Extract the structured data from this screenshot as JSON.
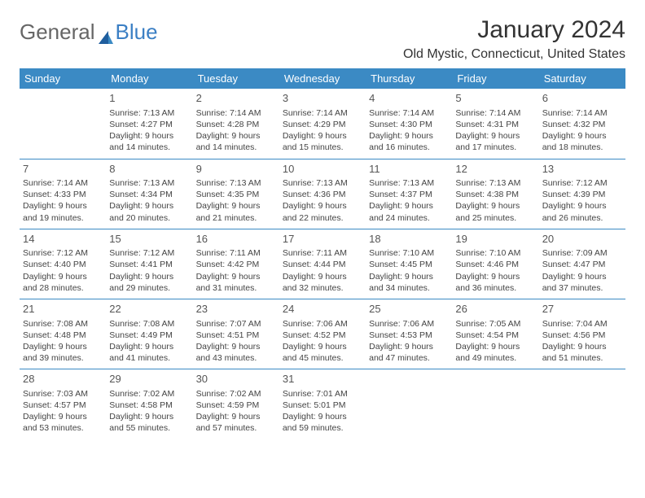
{
  "brand": {
    "part1": "General",
    "part2": "Blue"
  },
  "title": "January 2024",
  "location": "Old Mystic, Connecticut, United States",
  "colors": {
    "header_bg": "#3b8ac4",
    "header_text": "#ffffff",
    "rule": "#3b8ac4",
    "page_bg": "#ffffff",
    "body_text": "#444444",
    "logo_blue": "#3b7fc4",
    "logo_gray": "#666666"
  },
  "weekdays": [
    "Sunday",
    "Monday",
    "Tuesday",
    "Wednesday",
    "Thursday",
    "Friday",
    "Saturday"
  ],
  "weeks": [
    [
      null,
      {
        "n": "1",
        "sr": "Sunrise: 7:13 AM",
        "ss": "Sunset: 4:27 PM",
        "d1": "Daylight: 9 hours",
        "d2": "and 14 minutes."
      },
      {
        "n": "2",
        "sr": "Sunrise: 7:14 AM",
        "ss": "Sunset: 4:28 PM",
        "d1": "Daylight: 9 hours",
        "d2": "and 14 minutes."
      },
      {
        "n": "3",
        "sr": "Sunrise: 7:14 AM",
        "ss": "Sunset: 4:29 PM",
        "d1": "Daylight: 9 hours",
        "d2": "and 15 minutes."
      },
      {
        "n": "4",
        "sr": "Sunrise: 7:14 AM",
        "ss": "Sunset: 4:30 PM",
        "d1": "Daylight: 9 hours",
        "d2": "and 16 minutes."
      },
      {
        "n": "5",
        "sr": "Sunrise: 7:14 AM",
        "ss": "Sunset: 4:31 PM",
        "d1": "Daylight: 9 hours",
        "d2": "and 17 minutes."
      },
      {
        "n": "6",
        "sr": "Sunrise: 7:14 AM",
        "ss": "Sunset: 4:32 PM",
        "d1": "Daylight: 9 hours",
        "d2": "and 18 minutes."
      }
    ],
    [
      {
        "n": "7",
        "sr": "Sunrise: 7:14 AM",
        "ss": "Sunset: 4:33 PM",
        "d1": "Daylight: 9 hours",
        "d2": "and 19 minutes."
      },
      {
        "n": "8",
        "sr": "Sunrise: 7:13 AM",
        "ss": "Sunset: 4:34 PM",
        "d1": "Daylight: 9 hours",
        "d2": "and 20 minutes."
      },
      {
        "n": "9",
        "sr": "Sunrise: 7:13 AM",
        "ss": "Sunset: 4:35 PM",
        "d1": "Daylight: 9 hours",
        "d2": "and 21 minutes."
      },
      {
        "n": "10",
        "sr": "Sunrise: 7:13 AM",
        "ss": "Sunset: 4:36 PM",
        "d1": "Daylight: 9 hours",
        "d2": "and 22 minutes."
      },
      {
        "n": "11",
        "sr": "Sunrise: 7:13 AM",
        "ss": "Sunset: 4:37 PM",
        "d1": "Daylight: 9 hours",
        "d2": "and 24 minutes."
      },
      {
        "n": "12",
        "sr": "Sunrise: 7:13 AM",
        "ss": "Sunset: 4:38 PM",
        "d1": "Daylight: 9 hours",
        "d2": "and 25 minutes."
      },
      {
        "n": "13",
        "sr": "Sunrise: 7:12 AM",
        "ss": "Sunset: 4:39 PM",
        "d1": "Daylight: 9 hours",
        "d2": "and 26 minutes."
      }
    ],
    [
      {
        "n": "14",
        "sr": "Sunrise: 7:12 AM",
        "ss": "Sunset: 4:40 PM",
        "d1": "Daylight: 9 hours",
        "d2": "and 28 minutes."
      },
      {
        "n": "15",
        "sr": "Sunrise: 7:12 AM",
        "ss": "Sunset: 4:41 PM",
        "d1": "Daylight: 9 hours",
        "d2": "and 29 minutes."
      },
      {
        "n": "16",
        "sr": "Sunrise: 7:11 AM",
        "ss": "Sunset: 4:42 PM",
        "d1": "Daylight: 9 hours",
        "d2": "and 31 minutes."
      },
      {
        "n": "17",
        "sr": "Sunrise: 7:11 AM",
        "ss": "Sunset: 4:44 PM",
        "d1": "Daylight: 9 hours",
        "d2": "and 32 minutes."
      },
      {
        "n": "18",
        "sr": "Sunrise: 7:10 AM",
        "ss": "Sunset: 4:45 PM",
        "d1": "Daylight: 9 hours",
        "d2": "and 34 minutes."
      },
      {
        "n": "19",
        "sr": "Sunrise: 7:10 AM",
        "ss": "Sunset: 4:46 PM",
        "d1": "Daylight: 9 hours",
        "d2": "and 36 minutes."
      },
      {
        "n": "20",
        "sr": "Sunrise: 7:09 AM",
        "ss": "Sunset: 4:47 PM",
        "d1": "Daylight: 9 hours",
        "d2": "and 37 minutes."
      }
    ],
    [
      {
        "n": "21",
        "sr": "Sunrise: 7:08 AM",
        "ss": "Sunset: 4:48 PM",
        "d1": "Daylight: 9 hours",
        "d2": "and 39 minutes."
      },
      {
        "n": "22",
        "sr": "Sunrise: 7:08 AM",
        "ss": "Sunset: 4:49 PM",
        "d1": "Daylight: 9 hours",
        "d2": "and 41 minutes."
      },
      {
        "n": "23",
        "sr": "Sunrise: 7:07 AM",
        "ss": "Sunset: 4:51 PM",
        "d1": "Daylight: 9 hours",
        "d2": "and 43 minutes."
      },
      {
        "n": "24",
        "sr": "Sunrise: 7:06 AM",
        "ss": "Sunset: 4:52 PM",
        "d1": "Daylight: 9 hours",
        "d2": "and 45 minutes."
      },
      {
        "n": "25",
        "sr": "Sunrise: 7:06 AM",
        "ss": "Sunset: 4:53 PM",
        "d1": "Daylight: 9 hours",
        "d2": "and 47 minutes."
      },
      {
        "n": "26",
        "sr": "Sunrise: 7:05 AM",
        "ss": "Sunset: 4:54 PM",
        "d1": "Daylight: 9 hours",
        "d2": "and 49 minutes."
      },
      {
        "n": "27",
        "sr": "Sunrise: 7:04 AM",
        "ss": "Sunset: 4:56 PM",
        "d1": "Daylight: 9 hours",
        "d2": "and 51 minutes."
      }
    ],
    [
      {
        "n": "28",
        "sr": "Sunrise: 7:03 AM",
        "ss": "Sunset: 4:57 PM",
        "d1": "Daylight: 9 hours",
        "d2": "and 53 minutes."
      },
      {
        "n": "29",
        "sr": "Sunrise: 7:02 AM",
        "ss": "Sunset: 4:58 PM",
        "d1": "Daylight: 9 hours",
        "d2": "and 55 minutes."
      },
      {
        "n": "30",
        "sr": "Sunrise: 7:02 AM",
        "ss": "Sunset: 4:59 PM",
        "d1": "Daylight: 9 hours",
        "d2": "and 57 minutes."
      },
      {
        "n": "31",
        "sr": "Sunrise: 7:01 AM",
        "ss": "Sunset: 5:01 PM",
        "d1": "Daylight: 9 hours",
        "d2": "and 59 minutes."
      },
      null,
      null,
      null
    ]
  ]
}
